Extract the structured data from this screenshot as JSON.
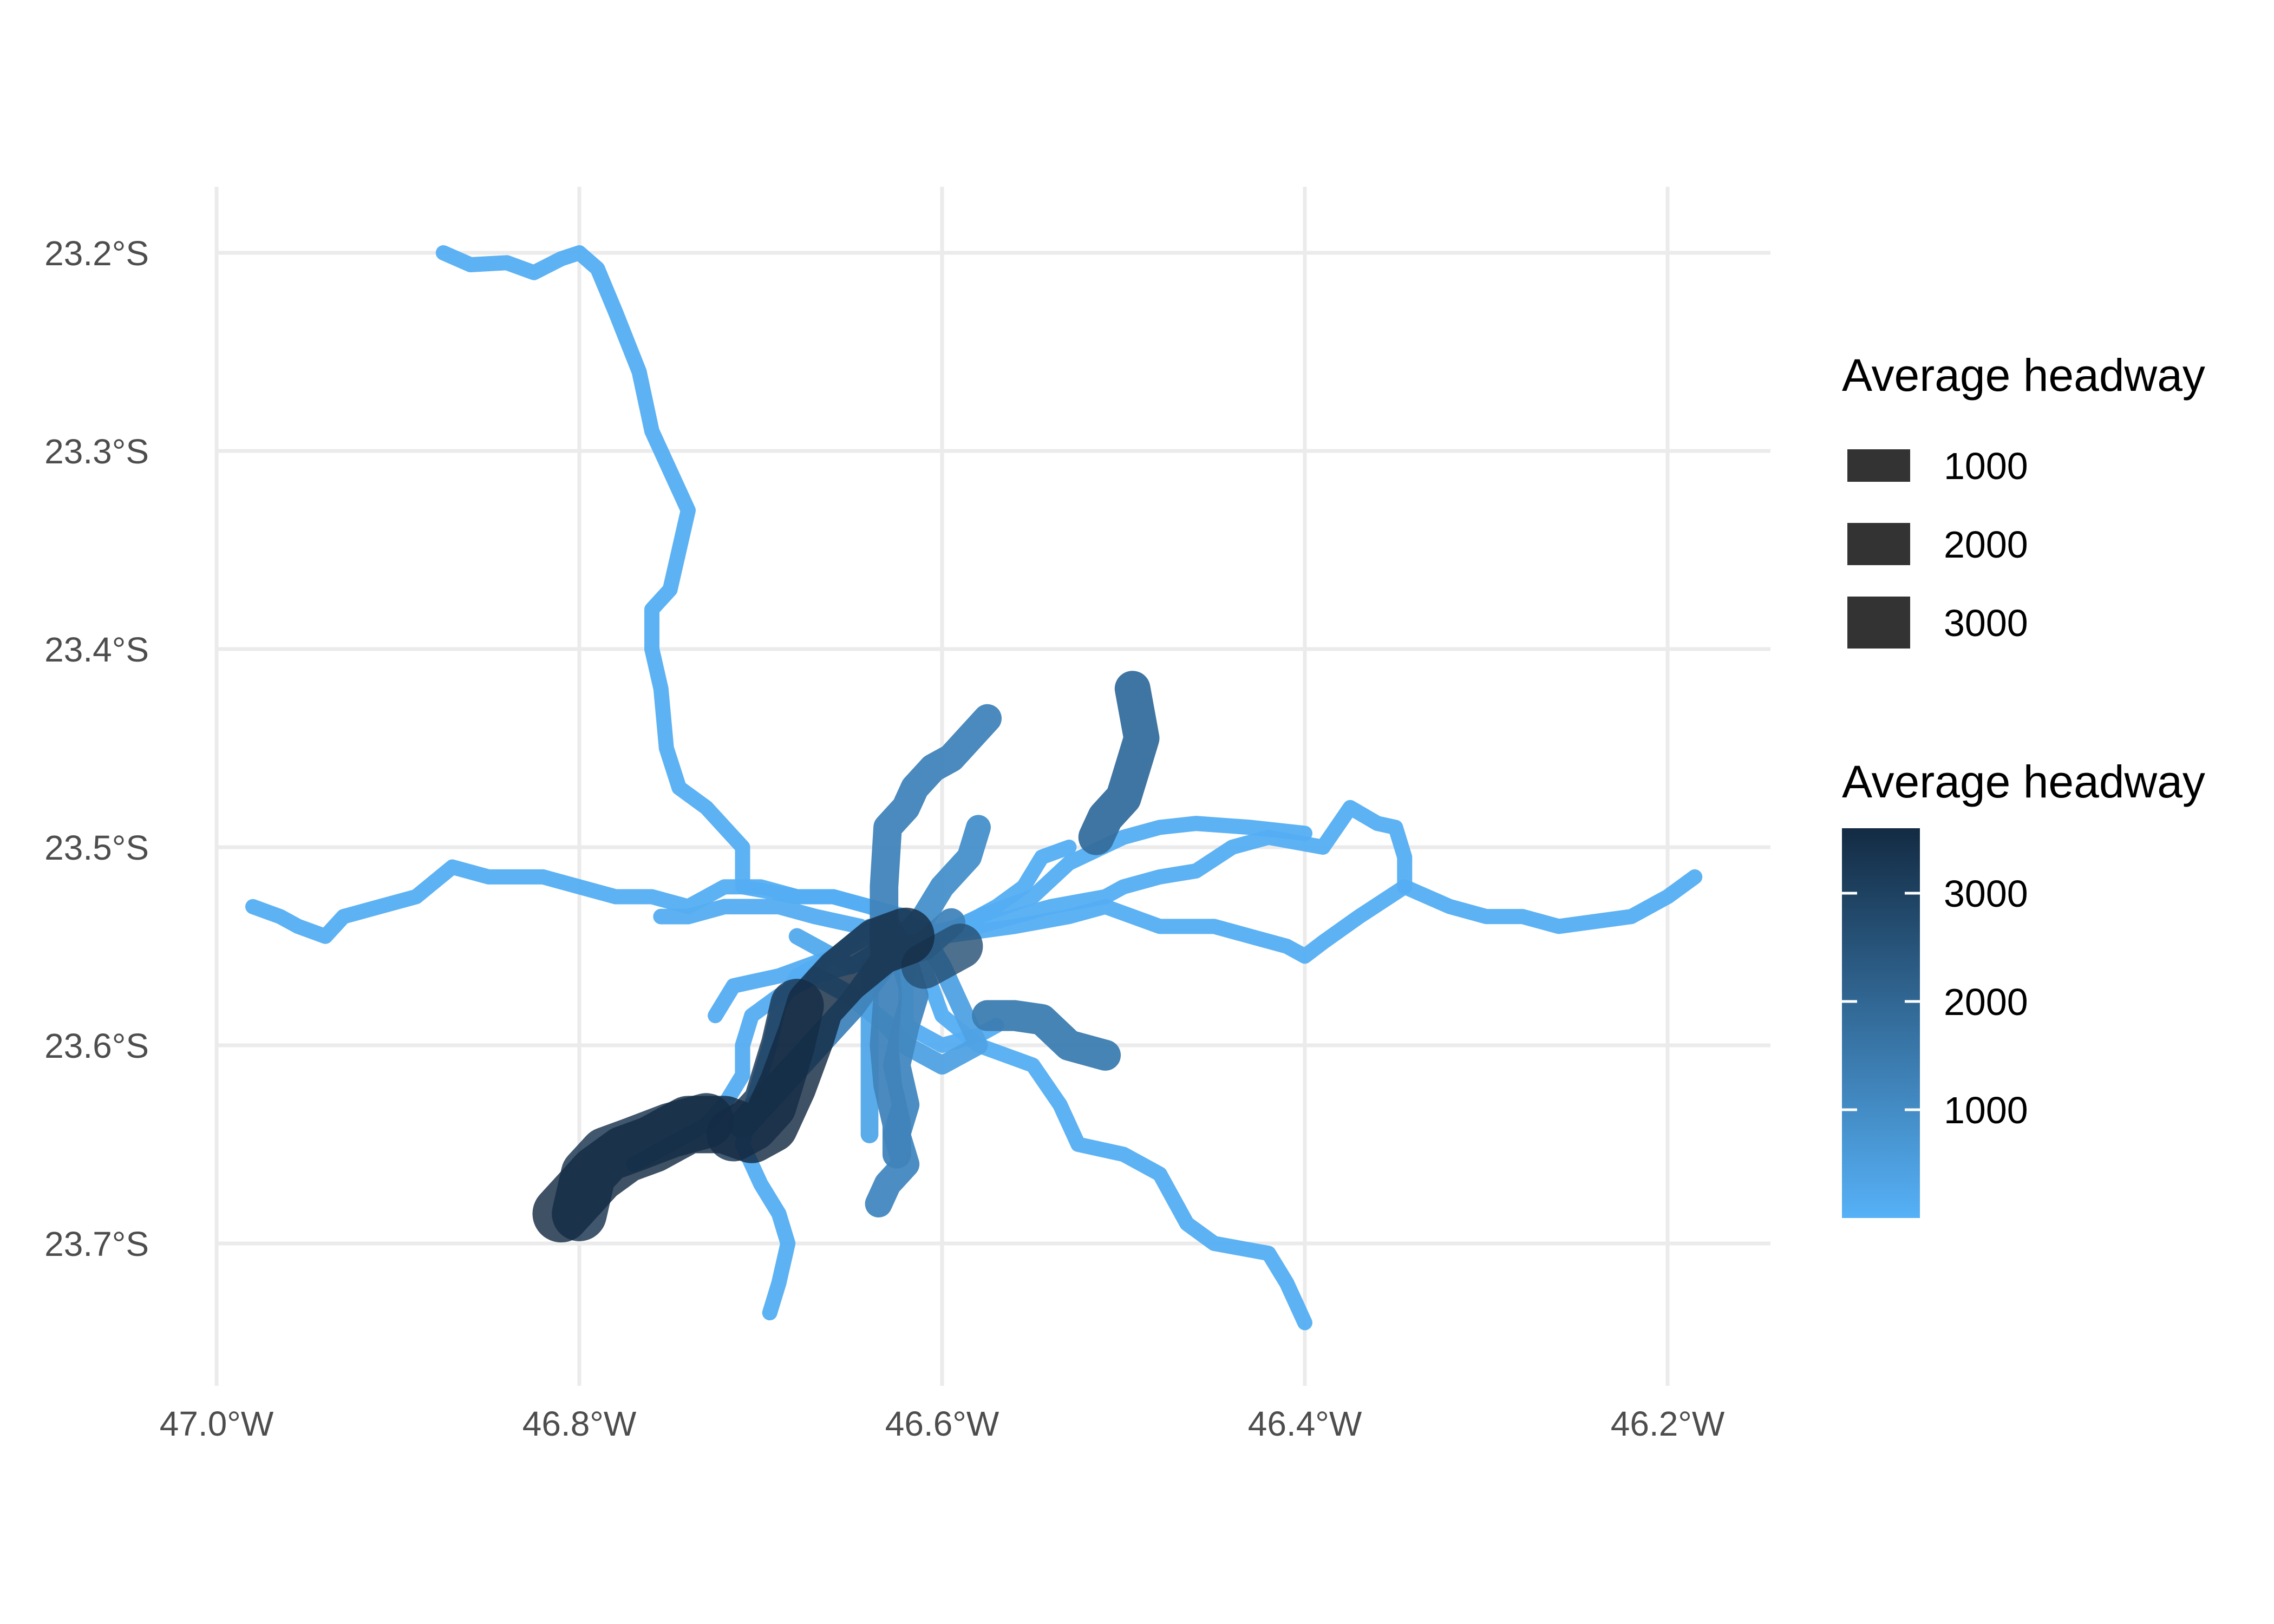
{
  "chart_data": {
    "type": "map",
    "grid": true,
    "xlim": [
      -47.0,
      -46.15
    ],
    "ylim": [
      -23.76,
      -23.165
    ],
    "x_ticks": [
      {
        "value": -47.0,
        "label": "47.0°W"
      },
      {
        "value": -46.8,
        "label": "46.8°W"
      },
      {
        "value": -46.6,
        "label": "46.6°W"
      },
      {
        "value": -46.4,
        "label": "46.4°W"
      },
      {
        "value": -46.2,
        "label": "46.2°W"
      }
    ],
    "y_ticks": [
      {
        "value": -23.2,
        "label": "23.2°S"
      },
      {
        "value": -23.3,
        "label": "23.3°S"
      },
      {
        "value": -23.4,
        "label": "23.4°S"
      },
      {
        "value": -23.5,
        "label": "23.5°S"
      },
      {
        "value": -23.6,
        "label": "23.6°S"
      },
      {
        "value": -23.7,
        "label": "23.7°S"
      }
    ],
    "color_scale": {
      "low": "#56B1F7",
      "high": "#132B43",
      "min": 0,
      "max": 3600
    },
    "legend_size": {
      "title": "Average headway",
      "entries": [
        {
          "value": 1000,
          "label": "1000"
        },
        {
          "value": 2000,
          "label": "2000"
        },
        {
          "value": 3000,
          "label": "3000"
        }
      ]
    },
    "legend_color": {
      "title": "Average headway",
      "ticks": [
        {
          "value": 3000,
          "label": "3000"
        },
        {
          "value": 2000,
          "label": "2000"
        },
        {
          "value": 1000,
          "label": "1000"
        }
      ]
    },
    "legend_placement": "right",
    "routes": [
      {
        "headway": 90,
        "coords": [
          [
            -46.875,
            -23.2
          ],
          [
            -46.86,
            -23.206
          ],
          [
            -46.84,
            -23.205
          ],
          [
            -46.825,
            -23.21
          ],
          [
            -46.81,
            -23.203
          ],
          [
            -46.8,
            -23.2
          ],
          [
            -46.79,
            -23.208
          ],
          [
            -46.78,
            -23.23
          ],
          [
            -46.767,
            -23.26
          ],
          [
            -46.76,
            -23.29
          ],
          [
            -46.75,
            -23.31
          ],
          [
            -46.74,
            -23.33
          ],
          [
            -46.745,
            -23.35
          ],
          [
            -46.75,
            -23.37
          ],
          [
            -46.76,
            -23.38
          ],
          [
            -46.76,
            -23.4
          ],
          [
            -46.755,
            -23.42
          ],
          [
            -46.752,
            -23.45
          ],
          [
            -46.745,
            -23.47
          ],
          [
            -46.73,
            -23.48
          ],
          [
            -46.71,
            -23.5
          ],
          [
            -46.71,
            -23.52
          ],
          [
            -46.68,
            -23.525
          ],
          [
            -46.66,
            -23.525
          ],
          [
            -46.64,
            -23.53
          ],
          [
            -46.62,
            -23.535
          ],
          [
            -46.61,
            -23.56
          ],
          [
            -46.6,
            -23.585
          ],
          [
            -46.58,
            -23.6
          ],
          [
            -46.55,
            -23.61
          ],
          [
            -46.535,
            -23.63
          ],
          [
            -46.525,
            -23.65
          ],
          [
            -46.5,
            -23.655
          ],
          [
            -46.48,
            -23.665
          ],
          [
            -46.465,
            -23.69
          ],
          [
            -46.45,
            -23.7
          ],
          [
            -46.42,
            -23.705
          ],
          [
            -46.41,
            -23.72
          ],
          [
            -46.4,
            -23.74
          ]
        ]
      },
      {
        "headway": 90,
        "coords": [
          [
            -46.98,
            -23.53
          ],
          [
            -46.965,
            -23.535
          ],
          [
            -46.955,
            -23.54
          ],
          [
            -46.94,
            -23.545
          ],
          [
            -46.93,
            -23.535
          ],
          [
            -46.91,
            -23.53
          ],
          [
            -46.89,
            -23.525
          ],
          [
            -46.87,
            -23.51
          ],
          [
            -46.85,
            -23.515
          ],
          [
            -46.82,
            -23.515
          ],
          [
            -46.8,
            -23.52
          ],
          [
            -46.78,
            -23.525
          ],
          [
            -46.76,
            -23.525
          ],
          [
            -46.74,
            -23.53
          ],
          [
            -46.72,
            -23.52
          ],
          [
            -46.7,
            -23.52
          ],
          [
            -46.68,
            -23.525
          ],
          [
            -46.66,
            -23.525
          ],
          [
            -46.64,
            -23.53
          ],
          [
            -46.6,
            -23.545
          ],
          [
            -46.56,
            -23.54
          ],
          [
            -46.53,
            -23.535
          ],
          [
            -46.51,
            -23.53
          ],
          [
            -46.48,
            -23.54
          ],
          [
            -46.45,
            -23.54
          ],
          [
            -46.43,
            -23.545
          ],
          [
            -46.41,
            -23.55
          ],
          [
            -46.4,
            -23.555
          ],
          [
            -46.39,
            -23.548
          ],
          [
            -46.37,
            -23.535
          ],
          [
            -46.345,
            -23.52
          ],
          [
            -46.32,
            -23.53
          ],
          [
            -46.3,
            -23.535
          ],
          [
            -46.28,
            -23.535
          ],
          [
            -46.26,
            -23.54
          ],
          [
            -46.22,
            -23.535
          ],
          [
            -46.2,
            -23.525
          ],
          [
            -46.185,
            -23.515
          ]
        ]
      },
      {
        "headway": 90,
        "coords": [
          [
            -46.62,
            -23.548
          ],
          [
            -46.58,
            -23.54
          ],
          [
            -46.56,
            -23.535
          ],
          [
            -46.54,
            -23.53
          ],
          [
            -46.51,
            -23.525
          ],
          [
            -46.5,
            -23.52
          ],
          [
            -46.48,
            -23.515
          ],
          [
            -46.46,
            -23.512
          ],
          [
            -46.44,
            -23.5
          ],
          [
            -46.42,
            -23.495
          ],
          [
            -46.39,
            -23.5
          ],
          [
            -46.375,
            -23.48
          ],
          [
            -46.36,
            -23.488
          ],
          [
            -46.35,
            -23.49
          ],
          [
            -46.345,
            -23.505
          ],
          [
            -46.345,
            -23.52
          ]
        ]
      },
      {
        "headway": 90,
        "coords": [
          [
            -46.61,
            -23.548
          ],
          [
            -46.58,
            -23.535
          ],
          [
            -46.55,
            -23.525
          ],
          [
            -46.53,
            -23.508
          ],
          [
            -46.5,
            -23.495
          ],
          [
            -46.48,
            -23.49
          ],
          [
            -46.46,
            -23.488
          ],
          [
            -46.43,
            -23.49
          ],
          [
            -46.4,
            -23.493
          ]
        ]
      },
      {
        "headway": 90,
        "coords": [
          [
            -46.615,
            -23.545
          ],
          [
            -46.59,
            -23.54
          ],
          [
            -46.57,
            -23.53
          ],
          [
            -46.555,
            -23.52
          ],
          [
            -46.545,
            -23.505
          ],
          [
            -46.53,
            -23.5
          ]
        ]
      },
      {
        "headway": 120,
        "coords": [
          [
            -46.62,
            -23.56
          ],
          [
            -46.63,
            -23.55
          ],
          [
            -46.645,
            -23.54
          ],
          [
            -46.67,
            -23.535
          ],
          [
            -46.69,
            -23.53
          ],
          [
            -46.72,
            -23.53
          ],
          [
            -46.74,
            -23.535
          ],
          [
            -46.755,
            -23.535
          ]
        ]
      },
      {
        "headway": 100,
        "coords": [
          [
            -46.605,
            -23.545
          ],
          [
            -46.63,
            -23.555
          ],
          [
            -46.65,
            -23.56
          ],
          [
            -46.67,
            -23.565
          ],
          [
            -46.69,
            -23.575
          ],
          [
            -46.705,
            -23.585
          ],
          [
            -46.71,
            -23.6
          ],
          [
            -46.71,
            -23.615
          ],
          [
            -46.72,
            -23.63
          ],
          [
            -46.73,
            -23.64
          ],
          [
            -46.75,
            -23.65
          ],
          [
            -46.77,
            -23.66
          ]
        ]
      },
      {
        "headway": 100,
        "coords": [
          [
            -46.725,
            -23.585
          ],
          [
            -46.715,
            -23.57
          ],
          [
            -46.69,
            -23.565
          ],
          [
            -46.66,
            -23.555
          ],
          [
            -46.64,
            -23.54
          ]
        ]
      },
      {
        "headway": 100,
        "coords": [
          [
            -46.615,
            -23.545
          ],
          [
            -46.62,
            -23.57
          ],
          [
            -46.62,
            -23.59
          ],
          [
            -46.6,
            -23.6
          ],
          [
            -46.58,
            -23.595
          ],
          [
            -46.57,
            -23.59
          ]
        ]
      },
      {
        "headway": 90,
        "coords": [
          [
            -46.695,
            -23.735
          ],
          [
            -46.69,
            -23.72
          ],
          [
            -46.685,
            -23.7
          ],
          [
            -46.69,
            -23.685
          ],
          [
            -46.7,
            -23.67
          ],
          [
            -46.71,
            -23.65
          ],
          [
            -46.705,
            -23.63
          ],
          [
            -46.7,
            -23.615
          ],
          [
            -46.695,
            -23.6
          ],
          [
            -46.69,
            -23.58
          ],
          [
            -46.68,
            -23.565
          ],
          [
            -46.66,
            -23.555
          ],
          [
            -46.64,
            -23.545
          ],
          [
            -46.62,
            -23.535
          ]
        ]
      },
      {
        "headway": 3600,
        "coords": [
          [
            -46.81,
            -23.685
          ],
          [
            -46.8,
            -23.675
          ],
          [
            -46.79,
            -23.665
          ],
          [
            -46.775,
            -23.655
          ],
          [
            -46.76,
            -23.65
          ],
          [
            -46.74,
            -23.64
          ],
          [
            -46.72,
            -23.64
          ],
          [
            -46.705,
            -23.645
          ],
          [
            -46.695,
            -23.64
          ],
          [
            -46.685,
            -23.62
          ],
          [
            -46.675,
            -23.595
          ],
          [
            -46.67,
            -23.58
          ],
          [
            -46.655,
            -23.565
          ],
          [
            -46.635,
            -23.55
          ],
          [
            -46.62,
            -23.545
          ]
        ]
      },
      {
        "headway": 3400,
        "coords": [
          [
            -46.8,
            -23.685
          ],
          [
            -46.795,
            -23.665
          ],
          [
            -46.785,
            -23.655
          ],
          [
            -46.77,
            -23.65
          ],
          [
            -46.75,
            -23.643
          ],
          [
            -46.73,
            -23.638
          ]
        ]
      },
      {
        "headway": 3300,
        "coords": [
          [
            -46.715,
            -23.645
          ],
          [
            -46.705,
            -23.64
          ],
          [
            -46.695,
            -23.63
          ],
          [
            -46.69,
            -23.615
          ],
          [
            -46.685,
            -23.6
          ],
          [
            -46.68,
            -23.58
          ]
        ]
      },
      {
        "headway": 2600,
        "coords": [
          [
            -46.61,
            -23.56
          ],
          [
            -46.6,
            -23.555
          ],
          [
            -46.59,
            -23.55
          ]
        ]
      },
      {
        "headway": 1200,
        "coords": [
          [
            -46.575,
            -23.435
          ],
          [
            -46.585,
            -23.445
          ],
          [
            -46.595,
            -23.455
          ],
          [
            -46.605,
            -23.46
          ],
          [
            -46.615,
            -23.47
          ],
          [
            -46.62,
            -23.48
          ],
          [
            -46.63,
            -23.49
          ],
          [
            -46.632,
            -23.52
          ],
          [
            -46.632,
            -23.55
          ],
          [
            -46.63,
            -23.575
          ],
          [
            -46.632,
            -23.6
          ],
          [
            -46.63,
            -23.62
          ],
          [
            -46.625,
            -23.64
          ],
          [
            -46.625,
            -23.655
          ]
        ]
      },
      {
        "headway": 900,
        "coords": [
          [
            -46.58,
            -23.49
          ],
          [
            -46.585,
            -23.505
          ],
          [
            -46.6,
            -23.52
          ],
          [
            -46.61,
            -23.535
          ],
          [
            -46.62,
            -23.545
          ]
        ]
      },
      {
        "headway": 1100,
        "coords": [
          [
            -46.63,
            -23.54
          ],
          [
            -46.62,
            -23.56
          ],
          [
            -46.615,
            -23.575
          ],
          [
            -46.62,
            -23.59
          ],
          [
            -46.625,
            -23.61
          ],
          [
            -46.62,
            -23.63
          ],
          [
            -46.625,
            -23.645
          ],
          [
            -46.62,
            -23.66
          ],
          [
            -46.63,
            -23.67
          ],
          [
            -46.635,
            -23.68
          ]
        ]
      },
      {
        "headway": 1800,
        "coords": [
          [
            -46.495,
            -23.42
          ],
          [
            -46.49,
            -23.445
          ],
          [
            -46.495,
            -23.46
          ],
          [
            -46.5,
            -23.475
          ],
          [
            -46.51,
            -23.485
          ],
          [
            -46.515,
            -23.495
          ]
        ]
      },
      {
        "headway": 1400,
        "coords": [
          [
            -46.575,
            -23.585
          ],
          [
            -46.56,
            -23.585
          ],
          [
            -46.545,
            -23.587
          ],
          [
            -46.53,
            -23.6
          ],
          [
            -46.51,
            -23.605
          ]
        ]
      },
      {
        "headway": 400,
        "coords": [
          [
            -46.61,
            -23.545
          ],
          [
            -46.6,
            -23.56
          ],
          [
            -46.59,
            -23.58
          ],
          [
            -46.58,
            -23.6
          ],
          [
            -46.6,
            -23.61
          ],
          [
            -46.62,
            -23.6
          ],
          [
            -46.63,
            -23.59
          ],
          [
            -46.65,
            -23.575
          ],
          [
            -46.67,
            -23.565
          ]
        ]
      },
      {
        "headway": 300,
        "coords": [
          [
            -46.64,
            -23.56
          ],
          [
            -46.64,
            -23.6
          ],
          [
            -46.64,
            -23.645
          ]
        ]
      },
      {
        "headway": 200,
        "coords": [
          [
            -46.615,
            -23.54
          ],
          [
            -46.65,
            -23.56
          ],
          [
            -46.68,
            -23.545
          ]
        ]
      },
      {
        "headway": 1200,
        "coords": [
          [
            -46.595,
            -23.538
          ],
          [
            -46.61,
            -23.55
          ],
          [
            -46.63,
            -23.555
          ],
          [
            -46.65,
            -23.58
          ],
          [
            -46.665,
            -23.595
          ],
          [
            -46.68,
            -23.61
          ],
          [
            -46.71,
            -23.64
          ]
        ]
      }
    ]
  }
}
